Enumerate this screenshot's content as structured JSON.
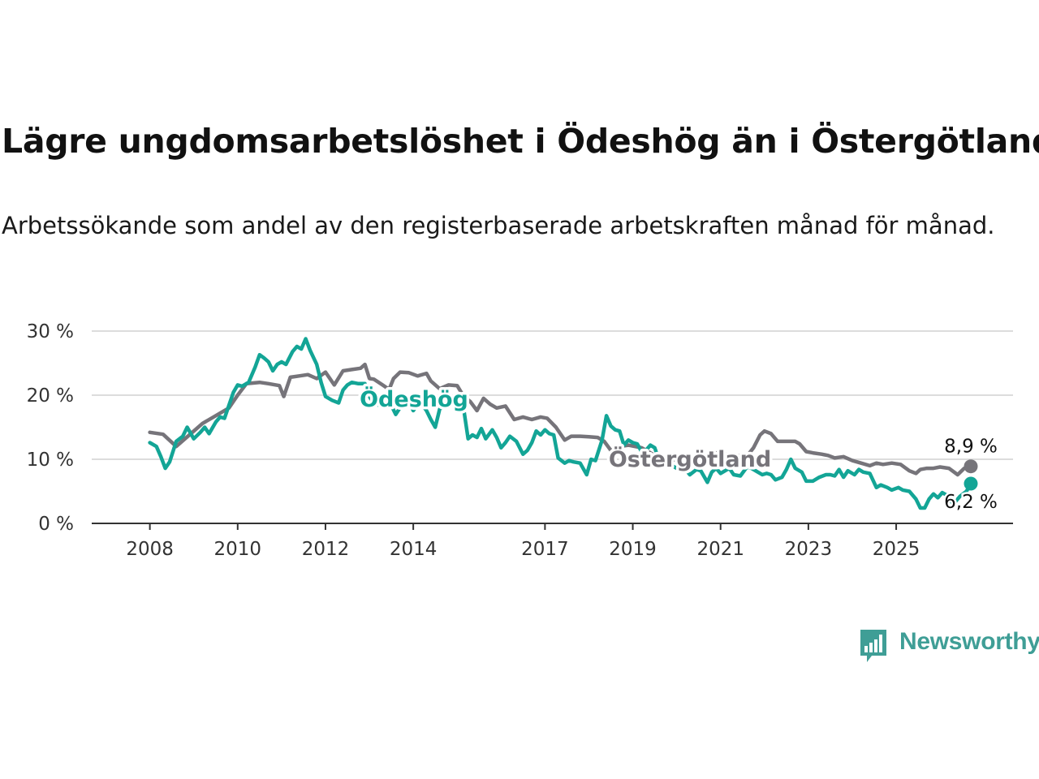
{
  "title": "Lägre ungdomsarbetslöshet i Ödeshög än i Östergötland",
  "subtitle": "Arbetssökande som andel av den registerbaserade arbetskraften månad för månad.",
  "brand": {
    "name": "Newsworthy",
    "color": "#3f9e96"
  },
  "chart_data": {
    "type": "line",
    "ylim": [
      0,
      30
    ],
    "xlim": [
      2007.6,
      2026.7
    ],
    "y_ticks": [
      {
        "value": 0,
        "label": "0 %"
      },
      {
        "value": 10,
        "label": "10 %"
      },
      {
        "value": 20,
        "label": "20 %"
      },
      {
        "value": 30,
        "label": "30 %"
      }
    ],
    "x_ticks": [
      {
        "value": 2008,
        "label": "2008"
      },
      {
        "value": 2010,
        "label": "2010"
      },
      {
        "value": 2012,
        "label": "2012"
      },
      {
        "value": 2014,
        "label": "2014"
      },
      {
        "value": 2017,
        "label": "2017"
      },
      {
        "value": 2019,
        "label": "2019"
      },
      {
        "value": 2021,
        "label": "2021"
      },
      {
        "value": 2023,
        "label": "2023"
      },
      {
        "value": 2025,
        "label": "2025"
      }
    ],
    "grid": true,
    "series": [
      {
        "name": "Östergötland",
        "color": "#76747a",
        "end_label": "8,9 %",
        "points": [
          [
            2008.0,
            14.2
          ],
          [
            2008.3,
            13.9
          ],
          [
            2008.6,
            12.0
          ],
          [
            2008.9,
            13.8
          ],
          [
            2009.2,
            15.6
          ],
          [
            2009.5,
            16.8
          ],
          [
            2009.8,
            18.0
          ],
          [
            2010.0,
            20.0
          ],
          [
            2010.2,
            21.8
          ],
          [
            2010.5,
            22.0
          ],
          [
            2010.7,
            21.8
          ],
          [
            2010.95,
            21.5
          ],
          [
            2011.05,
            19.8
          ],
          [
            2011.2,
            22.8
          ],
          [
            2011.4,
            23.0
          ],
          [
            2011.6,
            23.2
          ],
          [
            2011.8,
            22.6
          ],
          [
            2012.0,
            23.6
          ],
          [
            2012.2,
            21.6
          ],
          [
            2012.4,
            23.8
          ],
          [
            2012.6,
            24.0
          ],
          [
            2012.8,
            24.2
          ],
          [
            2012.9,
            24.8
          ],
          [
            2013.0,
            22.6
          ],
          [
            2013.1,
            22.5
          ],
          [
            2013.3,
            21.6
          ],
          [
            2013.45,
            20.9
          ],
          [
            2013.55,
            22.6
          ],
          [
            2013.7,
            23.6
          ],
          [
            2013.9,
            23.5
          ],
          [
            2014.1,
            23.0
          ],
          [
            2014.3,
            23.4
          ],
          [
            2014.4,
            22.2
          ],
          [
            2014.6,
            21.0
          ],
          [
            2014.8,
            21.6
          ],
          [
            2015.0,
            21.5
          ],
          [
            2015.15,
            19.8
          ],
          [
            2015.3,
            19.0
          ],
          [
            2015.45,
            17.6
          ],
          [
            2015.6,
            19.5
          ],
          [
            2015.75,
            18.6
          ],
          [
            2015.9,
            18.0
          ],
          [
            2016.1,
            18.3
          ],
          [
            2016.3,
            16.2
          ],
          [
            2016.5,
            16.6
          ],
          [
            2016.7,
            16.2
          ],
          [
            2016.9,
            16.6
          ],
          [
            2017.05,
            16.4
          ],
          [
            2017.25,
            15.0
          ],
          [
            2017.45,
            13.0
          ],
          [
            2017.6,
            13.6
          ],
          [
            2017.8,
            13.6
          ],
          [
            2018.0,
            13.5
          ],
          [
            2018.2,
            13.4
          ],
          [
            2018.35,
            12.8
          ],
          [
            2018.5,
            11.4
          ],
          [
            2018.7,
            12.0
          ],
          [
            2018.9,
            12.2
          ],
          [
            2019.05,
            12.0
          ],
          [
            2019.2,
            11.8
          ],
          [
            2019.4,
            11.0
          ],
          [
            2019.55,
            10.4
          ],
          [
            2019.7,
            10.2
          ],
          [
            2019.85,
            9.8
          ],
          [
            2020.05,
            10.0
          ],
          [
            2020.25,
            9.8
          ],
          [
            2020.45,
            9.6
          ],
          [
            2020.6,
            10.2
          ],
          [
            2020.75,
            11.0
          ],
          [
            2020.9,
            11.0
          ],
          [
            2021.1,
            10.8
          ],
          [
            2021.3,
            10.6
          ],
          [
            2021.45,
            10.6
          ],
          [
            2021.6,
            10.5
          ],
          [
            2021.75,
            11.8
          ],
          [
            2021.9,
            13.8
          ],
          [
            2022.0,
            14.4
          ],
          [
            2022.15,
            14.0
          ],
          [
            2022.3,
            12.8
          ],
          [
            2022.5,
            12.8
          ],
          [
            2022.7,
            12.8
          ],
          [
            2022.8,
            12.4
          ],
          [
            2022.95,
            11.2
          ],
          [
            2023.1,
            11.0
          ],
          [
            2023.3,
            10.8
          ],
          [
            2023.45,
            10.6
          ],
          [
            2023.6,
            10.2
          ],
          [
            2023.8,
            10.4
          ],
          [
            2024.0,
            9.8
          ],
          [
            2024.2,
            9.4
          ],
          [
            2024.4,
            9.0
          ],
          [
            2024.55,
            9.4
          ],
          [
            2024.7,
            9.2
          ],
          [
            2024.9,
            9.4
          ],
          [
            2025.1,
            9.2
          ],
          [
            2025.3,
            8.2
          ],
          [
            2025.45,
            7.8
          ],
          [
            2025.55,
            8.4
          ],
          [
            2025.7,
            8.6
          ],
          [
            2025.85,
            8.6
          ],
          [
            2026.0,
            8.8
          ],
          [
            2026.2,
            8.6
          ],
          [
            2026.4,
            7.6
          ],
          [
            2026.55,
            8.6
          ],
          [
            2026.7,
            8.9
          ]
        ]
      },
      {
        "name": "Ödeshög",
        "color": "#13a596",
        "end_label": "6,2 %",
        "points": [
          [
            2008.0,
            12.6
          ],
          [
            2008.15,
            12.0
          ],
          [
            2008.25,
            10.4
          ],
          [
            2008.35,
            8.6
          ],
          [
            2008.45,
            9.6
          ],
          [
            2008.6,
            12.8
          ],
          [
            2008.75,
            13.6
          ],
          [
            2008.85,
            15.0
          ],
          [
            2009.0,
            13.2
          ],
          [
            2009.15,
            14.2
          ],
          [
            2009.25,
            15.0
          ],
          [
            2009.35,
            14.0
          ],
          [
            2009.5,
            15.8
          ],
          [
            2009.6,
            16.6
          ],
          [
            2009.7,
            16.4
          ],
          [
            2009.8,
            18.4
          ],
          [
            2009.9,
            20.4
          ],
          [
            2010.0,
            21.6
          ],
          [
            2010.1,
            21.4
          ],
          [
            2010.25,
            22.0
          ],
          [
            2010.4,
            24.4
          ],
          [
            2010.5,
            26.3
          ],
          [
            2010.6,
            25.8
          ],
          [
            2010.7,
            25.2
          ],
          [
            2010.8,
            23.8
          ],
          [
            2010.9,
            24.8
          ],
          [
            2011.0,
            25.2
          ],
          [
            2011.1,
            24.8
          ],
          [
            2011.25,
            26.8
          ],
          [
            2011.35,
            27.6
          ],
          [
            2011.45,
            27.2
          ],
          [
            2011.55,
            28.8
          ],
          [
            2011.65,
            27.0
          ],
          [
            2011.8,
            24.8
          ],
          [
            2011.9,
            22.0
          ],
          [
            2012.0,
            19.8
          ],
          [
            2012.15,
            19.2
          ],
          [
            2012.3,
            18.8
          ],
          [
            2012.4,
            20.8
          ],
          [
            2012.5,
            21.6
          ],
          [
            2012.6,
            22.0
          ],
          [
            2012.75,
            21.8
          ],
          [
            2012.9,
            21.8
          ],
          [
            2013.0,
            19.8
          ],
          [
            2013.1,
            18.6
          ],
          [
            2013.25,
            18.4
          ],
          [
            2013.4,
            18.8
          ],
          [
            2013.5,
            18.4
          ],
          [
            2013.6,
            17.0
          ],
          [
            2013.75,
            18.6
          ],
          [
            2013.9,
            19.0
          ],
          [
            2014.0,
            17.6
          ],
          [
            2014.15,
            19.0
          ],
          [
            2014.3,
            17.6
          ],
          [
            2014.4,
            16.2
          ],
          [
            2014.5,
            15.0
          ],
          [
            2014.6,
            17.8
          ],
          [
            2014.75,
            18.8
          ],
          [
            2014.9,
            18.6
          ],
          [
            2015.0,
            18.2
          ],
          [
            2015.15,
            17.8
          ],
          [
            2015.25,
            13.2
          ],
          [
            2015.35,
            13.8
          ],
          [
            2015.45,
            13.4
          ],
          [
            2015.55,
            14.8
          ],
          [
            2015.65,
            13.2
          ],
          [
            2015.8,
            14.6
          ],
          [
            2015.9,
            13.4
          ],
          [
            2016.0,
            11.8
          ],
          [
            2016.1,
            12.6
          ],
          [
            2016.2,
            13.6
          ],
          [
            2016.35,
            12.8
          ],
          [
            2016.5,
            10.8
          ],
          [
            2016.6,
            11.4
          ],
          [
            2016.7,
            12.6
          ],
          [
            2016.8,
            14.4
          ],
          [
            2016.9,
            13.8
          ],
          [
            2017.0,
            14.6
          ],
          [
            2017.1,
            14.0
          ],
          [
            2017.2,
            13.8
          ],
          [
            2017.3,
            10.2
          ],
          [
            2017.45,
            9.4
          ],
          [
            2017.55,
            9.8
          ],
          [
            2017.65,
            9.6
          ],
          [
            2017.8,
            9.4
          ],
          [
            2017.95,
            7.6
          ],
          [
            2018.05,
            10.0
          ],
          [
            2018.15,
            9.8
          ],
          [
            2018.3,
            13.0
          ],
          [
            2018.4,
            16.8
          ],
          [
            2018.5,
            15.2
          ],
          [
            2018.6,
            14.6
          ],
          [
            2018.7,
            14.4
          ],
          [
            2018.8,
            12.2
          ],
          [
            2018.9,
            13.0
          ],
          [
            2019.0,
            12.6
          ],
          [
            2019.1,
            12.4
          ],
          [
            2019.2,
            11.2
          ],
          [
            2019.3,
            11.4
          ],
          [
            2019.4,
            12.2
          ],
          [
            2019.5,
            11.8
          ],
          [
            2019.6,
            9.8
          ],
          [
            2019.75,
            9.4
          ],
          [
            2019.9,
            9.0
          ],
          [
            2020.0,
            8.6
          ],
          [
            2020.15,
            8.8
          ],
          [
            2020.3,
            7.6
          ],
          [
            2020.45,
            8.4
          ],
          [
            2020.55,
            8.2
          ],
          [
            2020.7,
            6.4
          ],
          [
            2020.8,
            8.0
          ],
          [
            2020.9,
            8.6
          ],
          [
            2021.0,
            7.8
          ],
          [
            2021.2,
            8.6
          ],
          [
            2021.3,
            7.6
          ],
          [
            2021.45,
            7.4
          ],
          [
            2021.6,
            8.8
          ],
          [
            2021.7,
            8.6
          ],
          [
            2021.85,
            8.0
          ],
          [
            2021.95,
            7.6
          ],
          [
            2022.05,
            7.8
          ],
          [
            2022.15,
            7.6
          ],
          [
            2022.25,
            6.8
          ],
          [
            2022.4,
            7.2
          ],
          [
            2022.5,
            8.4
          ],
          [
            2022.6,
            10.0
          ],
          [
            2022.7,
            8.6
          ],
          [
            2022.85,
            8.0
          ],
          [
            2022.95,
            6.6
          ],
          [
            2023.1,
            6.6
          ],
          [
            2023.25,
            7.2
          ],
          [
            2023.4,
            7.6
          ],
          [
            2023.5,
            7.6
          ],
          [
            2023.6,
            7.4
          ],
          [
            2023.7,
            8.4
          ],
          [
            2023.8,
            7.2
          ],
          [
            2023.9,
            8.2
          ],
          [
            2024.05,
            7.6
          ],
          [
            2024.15,
            8.4
          ],
          [
            2024.25,
            8.0
          ],
          [
            2024.4,
            7.8
          ],
          [
            2024.55,
            5.6
          ],
          [
            2024.65,
            6.0
          ],
          [
            2024.8,
            5.6
          ],
          [
            2024.9,
            5.2
          ],
          [
            2025.05,
            5.6
          ],
          [
            2025.15,
            5.2
          ],
          [
            2025.3,
            5.0
          ],
          [
            2025.45,
            3.8
          ],
          [
            2025.55,
            2.4
          ],
          [
            2025.65,
            2.4
          ],
          [
            2025.75,
            3.8
          ],
          [
            2025.85,
            4.6
          ],
          [
            2025.95,
            4.0
          ],
          [
            2026.05,
            4.8
          ],
          [
            2026.15,
            4.4
          ],
          [
            2026.3,
            3.0
          ],
          [
            2026.45,
            4.2
          ],
          [
            2026.6,
            5.0
          ],
          [
            2026.7,
            6.2
          ]
        ]
      }
    ]
  }
}
